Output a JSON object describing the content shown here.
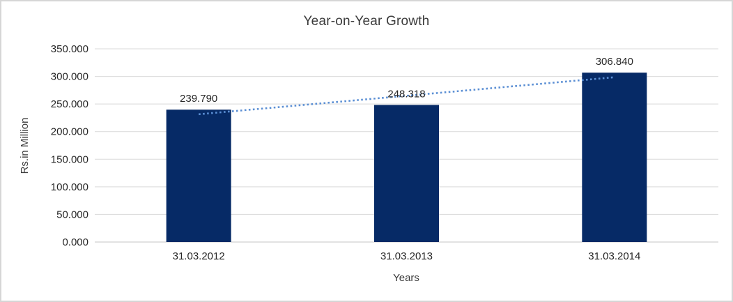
{
  "chart_data": {
    "type": "bar",
    "title": "Year-on-Year Growth",
    "categories": [
      "31.03.2012",
      "31.03.2013",
      "31.03.2014"
    ],
    "values": [
      239.79,
      248.318,
      306.84
    ],
    "data_labels": [
      "239.790",
      "248.318",
      "306.840"
    ],
    "xlabel": "Years",
    "ylabel": "Rs.in Million",
    "ylim": [
      0,
      350
    ],
    "ytick_step": 50,
    "ytick_labels": [
      "0.000",
      "50.000",
      "100.000",
      "150.000",
      "200.000",
      "250.000",
      "300.000",
      "350.000"
    ],
    "grid": true,
    "legend": "none",
    "trendline": {
      "type": "linear",
      "style": "dotted"
    },
    "colors": {
      "bar": "#062a66",
      "trendline": "#5b8fd4",
      "gridline": "#d9d9d9",
      "axis_line": "#c6c6c6",
      "text": "#262626",
      "frame_border": "#d6d6d6",
      "background": "#ffffff"
    }
  }
}
